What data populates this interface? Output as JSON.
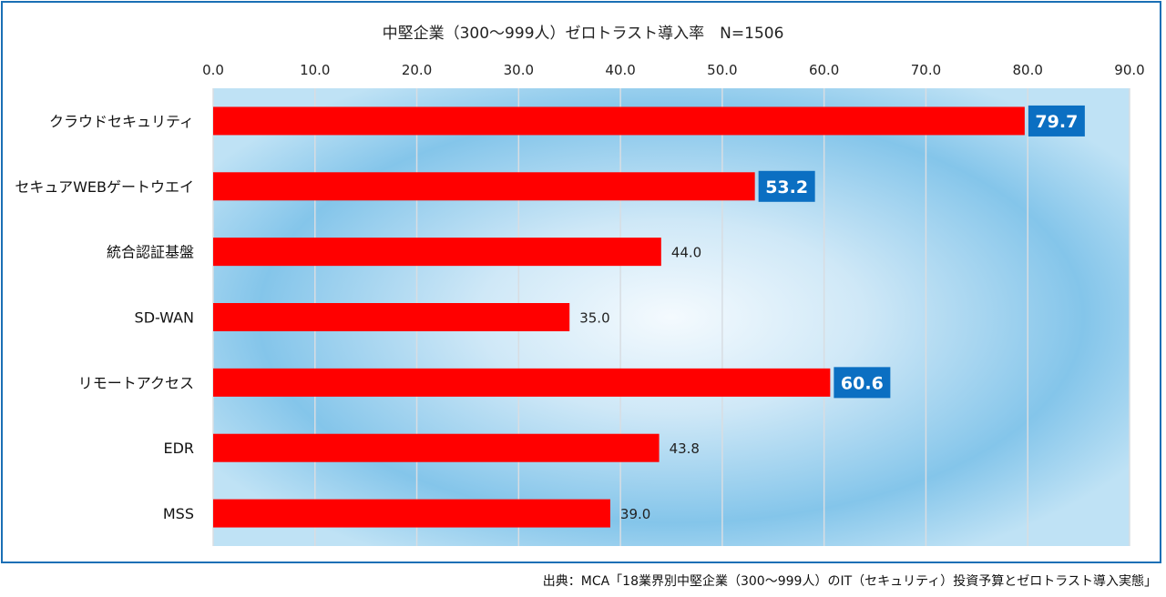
{
  "chart_data": {
    "type": "bar",
    "orientation": "horizontal",
    "title": "中堅企業（300～999人）ゼロトラスト導入率　N=1506",
    "categories": [
      "クラウドセキュリティ",
      "セキュアWEBゲートウエイ",
      "統合認証基盤",
      "SD-WAN",
      "リモートアクセス",
      "EDR",
      "MSS"
    ],
    "values": [
      79.7,
      53.2,
      44.0,
      35.0,
      60.6,
      43.8,
      39.0
    ],
    "value_labels": [
      "79.7",
      "53.2",
      "44.0",
      "35.0",
      "60.6",
      "43.8",
      "39.0"
    ],
    "highlighted": [
      true,
      true,
      false,
      false,
      true,
      false,
      false
    ],
    "xlim": [
      0,
      90
    ],
    "xticks": [
      "0.0",
      "10.0",
      "20.0",
      "30.0",
      "40.0",
      "50.0",
      "60.0",
      "70.0",
      "80.0",
      "90.0"
    ],
    "xtick_values": [
      0,
      10,
      20,
      30,
      40,
      50,
      60,
      70,
      80,
      90
    ],
    "xaxis_position": "top",
    "grid": true,
    "legend": "none",
    "colors": {
      "bar": "#ff0000",
      "highlight_box": "#0b6fc2",
      "grid": "#d8dde2",
      "frame": "#1a6fb5"
    }
  },
  "source_note": "出典：MCA「18業界別中堅企業（300～999人）のIT（セキュリティ）投資予算とゼロトラスト導入実態」"
}
